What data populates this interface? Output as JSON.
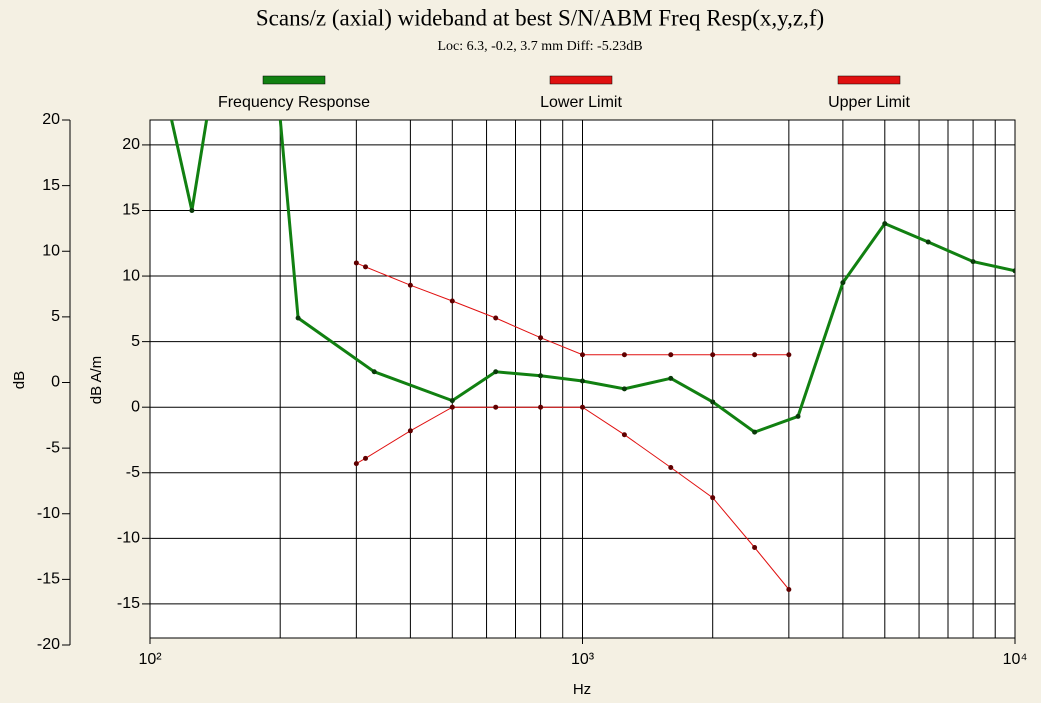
{
  "chart_data": {
    "type": "line",
    "title": "Scans/z (axial) wideband at best S/N/ABM Freq Resp(x,y,z,f)",
    "subtitle": "Loc: 6.3, -0.2, 3.7 mm Diff: -5.23dB",
    "xlabel": "Hz",
    "ylabel": "dB A/m",
    "y2label": "dB",
    "xscale": "log",
    "grid": true,
    "xlim": [
      100,
      10000
    ],
    "xticks": [
      {
        "value": 100,
        "label": "10²"
      },
      {
        "value": 1000,
        "label": "10³"
      },
      {
        "value": 10000,
        "label": "10⁴"
      }
    ],
    "ylim": [
      -17.6,
      21.9
    ],
    "yticks": [
      20,
      15,
      10,
      5,
      0,
      -5,
      -10,
      -15
    ],
    "y2lim": [
      -20,
      20
    ],
    "y2ticks": [
      20,
      15,
      10,
      5,
      0,
      -5,
      -10,
      -15,
      -20
    ],
    "series": [
      {
        "name": "Frequency Response",
        "color": "#118011",
        "x": [
          112,
          125,
          140,
          200,
          220,
          330,
          500,
          630,
          800,
          1000,
          1250,
          1600,
          2000,
          2500,
          3150,
          4000,
          5000,
          6300,
          8000,
          10000
        ],
        "values": [
          22,
          15,
          25,
          22,
          6.8,
          2.7,
          0.5,
          2.7,
          2.4,
          2.0,
          1.4,
          2.2,
          0.4,
          -1.9,
          -0.7,
          9.5,
          14.0,
          12.6,
          11.1,
          10.4
        ]
      },
      {
        "name": "Lower Limit",
        "color": "#e01010",
        "x": [
          300,
          315,
          400,
          500,
          630,
          800,
          1000,
          1250,
          1600,
          2000,
          2500,
          3000
        ],
        "values": [
          -4.3,
          -3.9,
          -1.8,
          0,
          0,
          0,
          0,
          -2.1,
          -4.6,
          -6.9,
          -10.7,
          -13.9
        ]
      },
      {
        "name": "Upper Limit",
        "color": "#e01010",
        "x": [
          300,
          315,
          400,
          500,
          630,
          800,
          1000,
          1250,
          1600,
          2000,
          2500,
          3000
        ],
        "values": [
          11.0,
          10.7,
          9.3,
          8.1,
          6.8,
          5.3,
          4.0,
          4.0,
          4.0,
          4.0,
          4.0,
          4.0
        ]
      }
    ]
  }
}
